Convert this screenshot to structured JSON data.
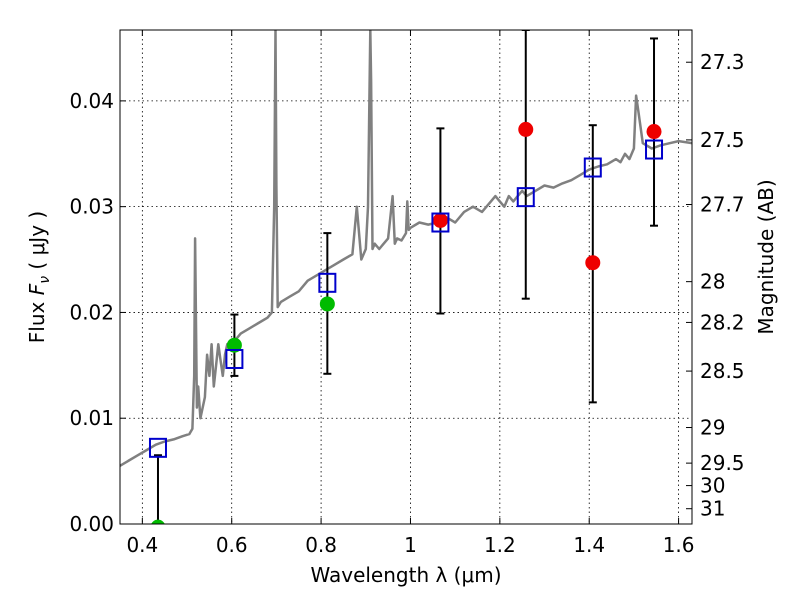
{
  "chart_data": {
    "type": "scatter",
    "xlabel": "Wavelength  λ (μm)",
    "ylabel": "Flux  F_ν  ( μJy )",
    "ylabel_right": "Magnitude (AB)",
    "xlim": [
      0.35,
      1.63
    ],
    "ylim": [
      0.0,
      0.0467
    ],
    "grid": true,
    "x_ticks": [
      {
        "value": 0.4,
        "label": "0.4"
      },
      {
        "value": 0.6,
        "label": "0.6"
      },
      {
        "value": 0.8,
        "label": "0.8"
      },
      {
        "value": 1.0,
        "label": "1"
      },
      {
        "value": 1.2,
        "label": "1.2"
      },
      {
        "value": 1.4,
        "label": "1.4"
      },
      {
        "value": 1.6,
        "label": "1.6"
      }
    ],
    "y_ticks": [
      {
        "value": 0.0,
        "label": "0.00"
      },
      {
        "value": 0.01,
        "label": "0.01"
      },
      {
        "value": 0.02,
        "label": "0.02"
      },
      {
        "value": 0.03,
        "label": "0.03"
      },
      {
        "value": 0.04,
        "label": "0.04"
      }
    ],
    "y_right_ticks": [
      {
        "value": 27.3,
        "label": "27.3"
      },
      {
        "value": 27.5,
        "label": "27.5"
      },
      {
        "value": 27.7,
        "label": "27.7"
      },
      {
        "value": 28.0,
        "label": "28"
      },
      {
        "value": 28.2,
        "label": "28.2"
      },
      {
        "value": 28.5,
        "label": "28.5"
      },
      {
        "value": 29.0,
        "label": "29"
      },
      {
        "value": 29.5,
        "label": "29.5"
      },
      {
        "value": 30.0,
        "label": "30"
      },
      {
        "value": 31.0,
        "label": "31"
      }
    ],
    "sed_model": {
      "color": "#808080",
      "x": [
        0.35,
        0.37,
        0.39,
        0.41,
        0.43,
        0.45,
        0.47,
        0.49,
        0.505,
        0.512,
        0.516,
        0.518,
        0.522,
        0.525,
        0.53,
        0.54,
        0.545,
        0.55,
        0.555,
        0.56,
        0.565,
        0.57,
        0.575,
        0.58,
        0.585,
        0.59,
        0.6,
        0.61,
        0.62,
        0.64,
        0.66,
        0.68,
        0.69,
        0.695,
        0.698,
        0.7,
        0.703,
        0.71,
        0.73,
        0.75,
        0.77,
        0.79,
        0.81,
        0.83,
        0.85,
        0.87,
        0.88,
        0.89,
        0.9,
        0.905,
        0.91,
        0.912,
        0.915,
        0.92,
        0.93,
        0.95,
        0.96,
        0.965,
        0.97,
        0.98,
        0.99,
        0.993,
        0.996,
        1.0,
        1.02,
        1.04,
        1.06,
        1.08,
        1.1,
        1.12,
        1.14,
        1.16,
        1.18,
        1.19,
        1.2,
        1.21,
        1.22,
        1.23,
        1.24,
        1.25,
        1.26,
        1.28,
        1.3,
        1.32,
        1.34,
        1.36,
        1.38,
        1.4,
        1.42,
        1.44,
        1.46,
        1.47,
        1.48,
        1.49,
        1.5,
        1.505,
        1.51,
        1.52,
        1.54,
        1.56,
        1.58,
        1.6,
        1.63
      ],
      "y": [
        0.0055,
        0.006,
        0.0065,
        0.007,
        0.0075,
        0.0078,
        0.008,
        0.0083,
        0.0085,
        0.009,
        0.014,
        0.027,
        0.011,
        0.013,
        0.01,
        0.012,
        0.016,
        0.014,
        0.017,
        0.013,
        0.015,
        0.017,
        0.0155,
        0.014,
        0.016,
        0.017,
        0.0168,
        0.0175,
        0.018,
        0.0185,
        0.019,
        0.0195,
        0.02,
        0.03,
        0.0467,
        0.032,
        0.0205,
        0.021,
        0.0215,
        0.022,
        0.023,
        0.0235,
        0.024,
        0.0245,
        0.025,
        0.0255,
        0.03,
        0.025,
        0.026,
        0.03,
        0.0467,
        0.042,
        0.026,
        0.0265,
        0.026,
        0.027,
        0.031,
        0.0265,
        0.027,
        0.0268,
        0.0275,
        0.0305,
        0.0278,
        0.028,
        0.0285,
        0.0283,
        0.0285,
        0.029,
        0.0285,
        0.0295,
        0.03,
        0.0295,
        0.0305,
        0.031,
        0.0305,
        0.03,
        0.031,
        0.0305,
        0.031,
        0.0315,
        0.031,
        0.0315,
        0.032,
        0.0318,
        0.0322,
        0.0325,
        0.033,
        0.0335,
        0.0338,
        0.034,
        0.0345,
        0.0342,
        0.035,
        0.0345,
        0.0355,
        0.0405,
        0.039,
        0.036,
        0.0355,
        0.0358,
        0.036,
        0.0362,
        0.036
      ]
    },
    "series": [
      {
        "marker": "square",
        "color": "#0000cc",
        "points": [
          {
            "x": 0.435,
            "y": 0.0072
          },
          {
            "x": 0.606,
            "y": 0.0156
          },
          {
            "x": 0.814,
            "y": 0.0228
          },
          {
            "x": 1.067,
            "y": 0.0285
          },
          {
            "x": 1.258,
            "y": 0.0309
          },
          {
            "x": 1.408,
            "y": 0.0337
          },
          {
            "x": 1.545,
            "y": 0.0354
          }
        ]
      },
      {
        "marker": "circle",
        "color": "#00bb00",
        "points": [
          {
            "x": 0.435,
            "y": -0.0003
          },
          {
            "x": 0.606,
            "y": 0.0169
          },
          {
            "x": 0.814,
            "y": 0.0208
          }
        ]
      },
      {
        "marker": "circle",
        "color": "#ee0000",
        "points": [
          {
            "x": 1.067,
            "y": 0.0287
          },
          {
            "x": 1.258,
            "y": 0.0373
          },
          {
            "x": 1.408,
            "y": 0.0247
          },
          {
            "x": 1.545,
            "y": 0.0371
          }
        ]
      }
    ],
    "error_bars": {
      "color": "#000000",
      "bars": [
        {
          "x": 0.435,
          "low": 0.0,
          "high": 0.0065
        },
        {
          "x": 0.606,
          "low": 0.014,
          "high": 0.0198
        },
        {
          "x": 0.814,
          "low": 0.0142,
          "high": 0.0275
        },
        {
          "x": 1.067,
          "low": 0.0199,
          "high": 0.0374
        },
        {
          "x": 1.258,
          "low": 0.0213,
          "high": 0.0467
        },
        {
          "x": 1.408,
          "low": 0.0115,
          "high": 0.0377
        },
        {
          "x": 1.545,
          "low": 0.0282,
          "high": 0.0459
        }
      ]
    }
  }
}
